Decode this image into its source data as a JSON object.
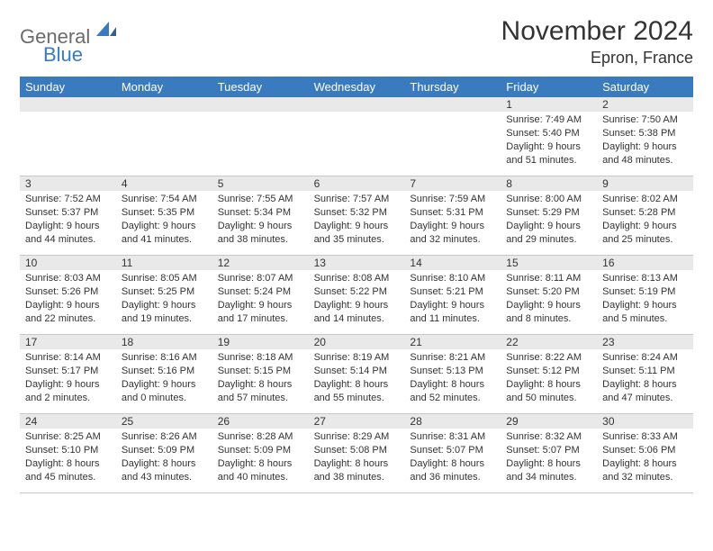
{
  "brand": {
    "text1": "General",
    "text2": "Blue"
  },
  "title": "November 2024",
  "location": "Epron, France",
  "colors": {
    "header_bg": "#3a7bbf",
    "header_text": "#ffffff",
    "daynum_bg": "#e9e9e9",
    "border": "#c8c8c8",
    "text": "#333333",
    "logo_gray": "#6b6b6b",
    "logo_blue": "#3a7bbf",
    "page_bg": "#ffffff"
  },
  "day_names": [
    "Sunday",
    "Monday",
    "Tuesday",
    "Wednesday",
    "Thursday",
    "Friday",
    "Saturday"
  ],
  "weeks": [
    [
      {
        "empty": true
      },
      {
        "empty": true
      },
      {
        "empty": true
      },
      {
        "empty": true
      },
      {
        "empty": true
      },
      {
        "day": "1",
        "sunrise": "Sunrise: 7:49 AM",
        "sunset": "Sunset: 5:40 PM",
        "daylight": "Daylight: 9 hours and 51 minutes."
      },
      {
        "day": "2",
        "sunrise": "Sunrise: 7:50 AM",
        "sunset": "Sunset: 5:38 PM",
        "daylight": "Daylight: 9 hours and 48 minutes."
      }
    ],
    [
      {
        "day": "3",
        "sunrise": "Sunrise: 7:52 AM",
        "sunset": "Sunset: 5:37 PM",
        "daylight": "Daylight: 9 hours and 44 minutes."
      },
      {
        "day": "4",
        "sunrise": "Sunrise: 7:54 AM",
        "sunset": "Sunset: 5:35 PM",
        "daylight": "Daylight: 9 hours and 41 minutes."
      },
      {
        "day": "5",
        "sunrise": "Sunrise: 7:55 AM",
        "sunset": "Sunset: 5:34 PM",
        "daylight": "Daylight: 9 hours and 38 minutes."
      },
      {
        "day": "6",
        "sunrise": "Sunrise: 7:57 AM",
        "sunset": "Sunset: 5:32 PM",
        "daylight": "Daylight: 9 hours and 35 minutes."
      },
      {
        "day": "7",
        "sunrise": "Sunrise: 7:59 AM",
        "sunset": "Sunset: 5:31 PM",
        "daylight": "Daylight: 9 hours and 32 minutes."
      },
      {
        "day": "8",
        "sunrise": "Sunrise: 8:00 AM",
        "sunset": "Sunset: 5:29 PM",
        "daylight": "Daylight: 9 hours and 29 minutes."
      },
      {
        "day": "9",
        "sunrise": "Sunrise: 8:02 AM",
        "sunset": "Sunset: 5:28 PM",
        "daylight": "Daylight: 9 hours and 25 minutes."
      }
    ],
    [
      {
        "day": "10",
        "sunrise": "Sunrise: 8:03 AM",
        "sunset": "Sunset: 5:26 PM",
        "daylight": "Daylight: 9 hours and 22 minutes."
      },
      {
        "day": "11",
        "sunrise": "Sunrise: 8:05 AM",
        "sunset": "Sunset: 5:25 PM",
        "daylight": "Daylight: 9 hours and 19 minutes."
      },
      {
        "day": "12",
        "sunrise": "Sunrise: 8:07 AM",
        "sunset": "Sunset: 5:24 PM",
        "daylight": "Daylight: 9 hours and 17 minutes."
      },
      {
        "day": "13",
        "sunrise": "Sunrise: 8:08 AM",
        "sunset": "Sunset: 5:22 PM",
        "daylight": "Daylight: 9 hours and 14 minutes."
      },
      {
        "day": "14",
        "sunrise": "Sunrise: 8:10 AM",
        "sunset": "Sunset: 5:21 PM",
        "daylight": "Daylight: 9 hours and 11 minutes."
      },
      {
        "day": "15",
        "sunrise": "Sunrise: 8:11 AM",
        "sunset": "Sunset: 5:20 PM",
        "daylight": "Daylight: 9 hours and 8 minutes."
      },
      {
        "day": "16",
        "sunrise": "Sunrise: 8:13 AM",
        "sunset": "Sunset: 5:19 PM",
        "daylight": "Daylight: 9 hours and 5 minutes."
      }
    ],
    [
      {
        "day": "17",
        "sunrise": "Sunrise: 8:14 AM",
        "sunset": "Sunset: 5:17 PM",
        "daylight": "Daylight: 9 hours and 2 minutes."
      },
      {
        "day": "18",
        "sunrise": "Sunrise: 8:16 AM",
        "sunset": "Sunset: 5:16 PM",
        "daylight": "Daylight: 9 hours and 0 minutes."
      },
      {
        "day": "19",
        "sunrise": "Sunrise: 8:18 AM",
        "sunset": "Sunset: 5:15 PM",
        "daylight": "Daylight: 8 hours and 57 minutes."
      },
      {
        "day": "20",
        "sunrise": "Sunrise: 8:19 AM",
        "sunset": "Sunset: 5:14 PM",
        "daylight": "Daylight: 8 hours and 55 minutes."
      },
      {
        "day": "21",
        "sunrise": "Sunrise: 8:21 AM",
        "sunset": "Sunset: 5:13 PM",
        "daylight": "Daylight: 8 hours and 52 minutes."
      },
      {
        "day": "22",
        "sunrise": "Sunrise: 8:22 AM",
        "sunset": "Sunset: 5:12 PM",
        "daylight": "Daylight: 8 hours and 50 minutes."
      },
      {
        "day": "23",
        "sunrise": "Sunrise: 8:24 AM",
        "sunset": "Sunset: 5:11 PM",
        "daylight": "Daylight: 8 hours and 47 minutes."
      }
    ],
    [
      {
        "day": "24",
        "sunrise": "Sunrise: 8:25 AM",
        "sunset": "Sunset: 5:10 PM",
        "daylight": "Daylight: 8 hours and 45 minutes."
      },
      {
        "day": "25",
        "sunrise": "Sunrise: 8:26 AM",
        "sunset": "Sunset: 5:09 PM",
        "daylight": "Daylight: 8 hours and 43 minutes."
      },
      {
        "day": "26",
        "sunrise": "Sunrise: 8:28 AM",
        "sunset": "Sunset: 5:09 PM",
        "daylight": "Daylight: 8 hours and 40 minutes."
      },
      {
        "day": "27",
        "sunrise": "Sunrise: 8:29 AM",
        "sunset": "Sunset: 5:08 PM",
        "daylight": "Daylight: 8 hours and 38 minutes."
      },
      {
        "day": "28",
        "sunrise": "Sunrise: 8:31 AM",
        "sunset": "Sunset: 5:07 PM",
        "daylight": "Daylight: 8 hours and 36 minutes."
      },
      {
        "day": "29",
        "sunrise": "Sunrise: 8:32 AM",
        "sunset": "Sunset: 5:07 PM",
        "daylight": "Daylight: 8 hours and 34 minutes."
      },
      {
        "day": "30",
        "sunrise": "Sunrise: 8:33 AM",
        "sunset": "Sunset: 5:06 PM",
        "daylight": "Daylight: 8 hours and 32 minutes."
      }
    ]
  ]
}
